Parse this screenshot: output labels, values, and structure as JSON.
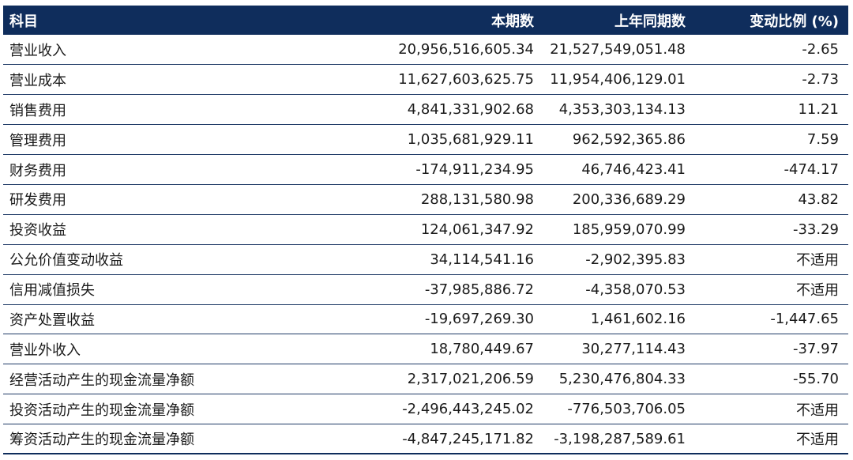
{
  "headers": [
    "科目",
    "本期数",
    "上年同期数",
    "变动比例 (%)"
  ],
  "rows": [
    {
      "item": "营业收入",
      "current": "20,956,516,605.34",
      "prior": "21,527,549,051.48",
      "change": "-2.65"
    },
    {
      "item": "营业成本",
      "current": "11,627,603,625.75",
      "prior": "11,954,406,129.01",
      "change": "-2.73"
    },
    {
      "item": "销售费用",
      "current": "4,841,331,902.68",
      "prior": "4,353,303,134.13",
      "change": "11.21"
    },
    {
      "item": "管理费用",
      "current": "1,035,681,929.11",
      "prior": "962,592,365.86",
      "change": "7.59"
    },
    {
      "item": "财务费用",
      "current": "-174,911,234.95",
      "prior": "46,746,423.41",
      "change": "-474.17"
    },
    {
      "item": "研发费用",
      "current": "288,131,580.98",
      "prior": "200,336,689.29",
      "change": "43.82"
    },
    {
      "item": "投资收益",
      "current": "124,061,347.92",
      "prior": "185,959,070.99",
      "change": "-33.29"
    },
    {
      "item": "公允价值变动收益",
      "current": "34,114,541.16",
      "prior": "-2,902,395.83",
      "change": "不适用"
    },
    {
      "item": "信用减值损失",
      "current": "-37,985,886.72",
      "prior": "-4,358,070.53",
      "change": "不适用"
    },
    {
      "item": "资产处置收益",
      "current": "-19,697,269.30",
      "prior": "1,461,602.16",
      "change": "-1,447.65"
    },
    {
      "item": "营业外收入",
      "current": "18,780,449.67",
      "prior": "30,277,114.43",
      "change": "-37.97"
    },
    {
      "item": "经营活动产生的现金流量净额",
      "current": "2,317,021,206.59",
      "prior": "5,230,476,804.33",
      "change": "-55.70"
    },
    {
      "item": "投资活动产生的现金流量净额",
      "current": "-2,496,443,245.02",
      "prior": "-776,503,706.05",
      "change": "不适用"
    },
    {
      "item": "筹资活动产生的现金流量净额",
      "current": "-4,847,245,171.82",
      "prior": "-3,198,287,589.61",
      "change": "不适用"
    }
  ],
  "colors": {
    "header_bg": "#0f2d5c",
    "header_text": "#ffffff",
    "row_rule": "#1f3a66"
  }
}
